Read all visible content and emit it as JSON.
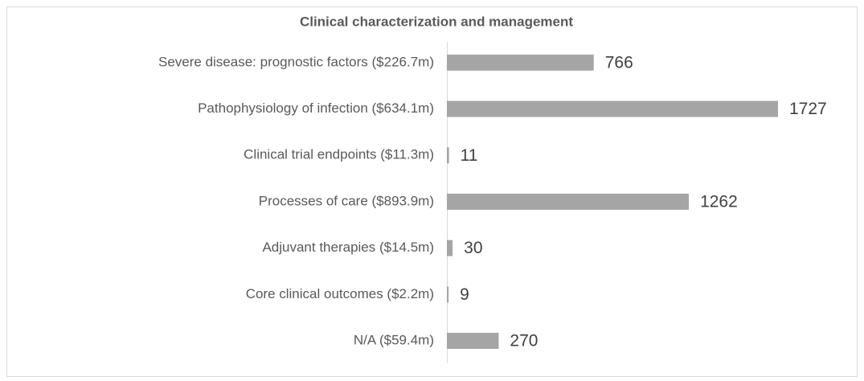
{
  "chart_data": {
    "type": "bar",
    "orientation": "horizontal",
    "title": "Clinical characterization and management",
    "categories": [
      "Severe disease: prognostic factors ($226.7m)",
      "Pathophysiology of infection ($634.1m)",
      "Clinical trial endpoints ($11.3m)",
      "Processes of care ($893.9m)",
      "Adjuvant therapies ($14.5m)",
      "Core clinical outcomes ($2.2m)",
      "N/A ($59.4m)"
    ],
    "values": [
      766,
      1727,
      11,
      1262,
      30,
      9,
      270
    ],
    "color": "#a5a5a5"
  }
}
